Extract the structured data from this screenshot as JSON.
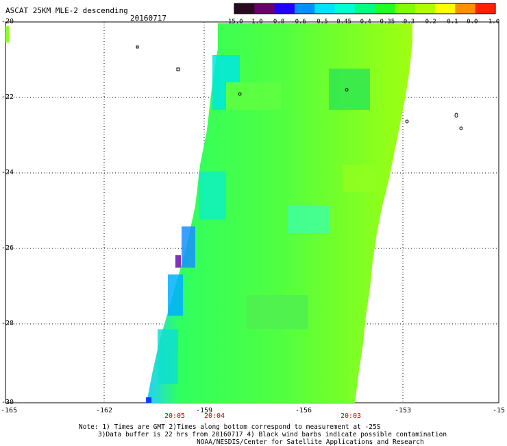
{
  "title": "ASCAT 25KM MLE-2 descending",
  "date": "20160717",
  "y_labels": [
    "-20",
    "-22",
    "-24",
    "-26",
    "-28",
    "-30"
  ],
  "x_labels": [
    "-165",
    "-162",
    "-159",
    "-156",
    "-153",
    "-15"
  ],
  "times": [
    "20:05",
    "20:04",
    "20:03"
  ],
  "colorbar": {
    "labels": [
      "-15.0",
      "-1.0",
      "-0.8",
      "-0.6",
      "-0.5",
      "-0.45",
      "-0.4",
      "-0.35",
      "-0.3",
      "-0.2",
      "-0.1",
      "0.0",
      "1.0"
    ],
    "colors": [
      "#2a0a1e",
      "#6a006a",
      "#2000ff",
      "#0090ff",
      "#00e0ff",
      "#00ffd0",
      "#00ff80",
      "#20ff20",
      "#80ff00",
      "#b0ff00",
      "#ffff00",
      "#ff9000",
      "#ff2000"
    ]
  },
  "notes": [
    "Note: 1) Times are GMT 2)Times along bottom correspond to measurement at -25S",
    "3)Data buffer is 22 hrs from 20160717 4) Black wind barbs indicate possible contamination",
    "NOAA/NESDIS/Center for Satellite Applications and Research"
  ]
}
